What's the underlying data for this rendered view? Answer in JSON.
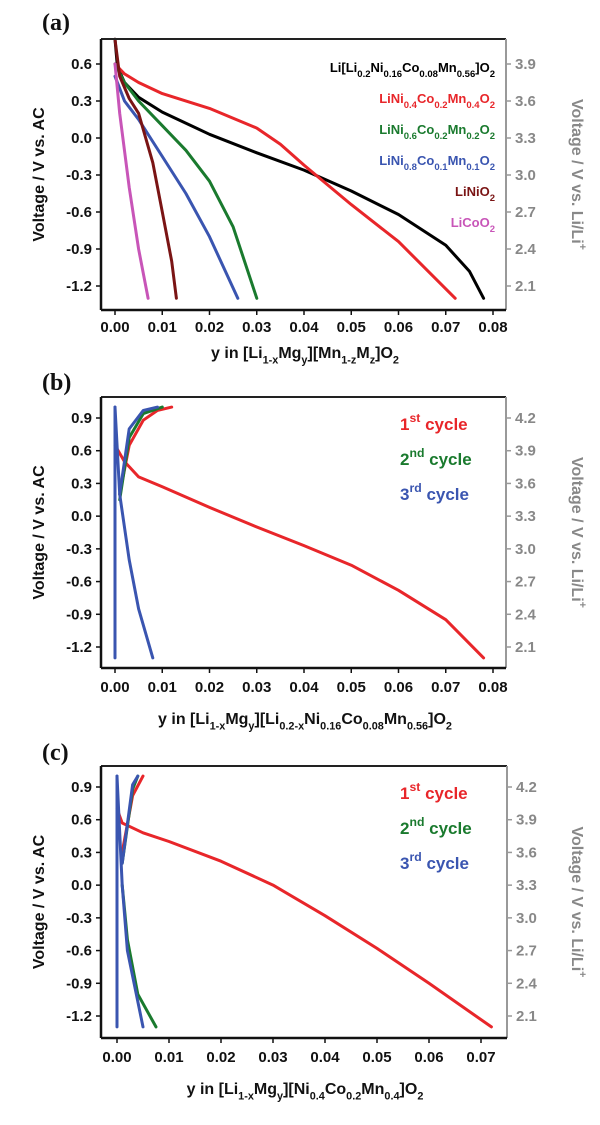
{
  "chart_data": [
    {
      "type": "line",
      "panel_label": "(a)",
      "xlabel": "y in [Li_{1-x}Mg_{y}][Mn_{1-z}M_{z}]O_{2}",
      "ylabel": "Voltage / V vs. AC",
      "ylabel_right": "Voltage / V vs. Li/Li^{+}",
      "xlim": [
        0,
        0.08
      ],
      "ylim": [
        -1.3,
        0.8
      ],
      "xticks": [
        "0.00",
        "0.01",
        "0.02",
        "0.03",
        "0.04",
        "0.05",
        "0.06",
        "0.07",
        "0.08"
      ],
      "yticks": [
        "0.6",
        "0.3",
        "0.0",
        "-0.3",
        "-0.6",
        "-0.9",
        "-1.2"
      ],
      "yticks_right": [
        "3.9",
        "3.6",
        "3.3",
        "3.0",
        "2.7",
        "2.4",
        "2.1"
      ],
      "legend_position": "top-right",
      "series": [
        {
          "name": "Li[Li_{0.2}Ni_{0.16}Co_{0.08}Mn_{0.56}]O_{2}",
          "color": "#000000",
          "points": [
            [
              0,
              0.8
            ],
            [
              0.0005,
              0.58
            ],
            [
              0.002,
              0.45
            ],
            [
              0.005,
              0.33
            ],
            [
              0.01,
              0.21
            ],
            [
              0.02,
              0.03
            ],
            [
              0.03,
              -0.12
            ],
            [
              0.04,
              -0.26
            ],
            [
              0.05,
              -0.43
            ],
            [
              0.06,
              -0.62
            ],
            [
              0.07,
              -0.87
            ],
            [
              0.075,
              -1.08
            ],
            [
              0.078,
              -1.3
            ]
          ]
        },
        {
          "name": "LiNi_{0.4}Co_{0.2}Mn_{0.4}O_{2}",
          "color": "#e8262a",
          "points": [
            [
              0,
              0.6
            ],
            [
              0.002,
              0.52
            ],
            [
              0.005,
              0.45
            ],
            [
              0.01,
              0.36
            ],
            [
              0.02,
              0.24
            ],
            [
              0.03,
              0.08
            ],
            [
              0.035,
              -0.05
            ],
            [
              0.04,
              -0.22
            ],
            [
              0.045,
              -0.38
            ],
            [
              0.05,
              -0.54
            ],
            [
              0.06,
              -0.84
            ],
            [
              0.072,
              -1.3
            ]
          ]
        },
        {
          "name": "LiNi_{0.6}Co_{0.2}Mn_{0.2}O_{2}",
          "color": "#1a7a2e",
          "points": [
            [
              0,
              0.6
            ],
            [
              0.002,
              0.45
            ],
            [
              0.005,
              0.3
            ],
            [
              0.01,
              0.1
            ],
            [
              0.015,
              -0.1
            ],
            [
              0.02,
              -0.35
            ],
            [
              0.025,
              -0.72
            ],
            [
              0.03,
              -1.3
            ]
          ]
        },
        {
          "name": "LiNi_{0.8}Co_{0.1}Mn_{0.1}O_{2}",
          "color": "#3a55b0",
          "points": [
            [
              0,
              0.5
            ],
            [
              0.002,
              0.3
            ],
            [
              0.005,
              0.15
            ],
            [
              0.01,
              -0.15
            ],
            [
              0.015,
              -0.45
            ],
            [
              0.02,
              -0.8
            ],
            [
              0.026,
              -1.3
            ]
          ]
        },
        {
          "name": "LiNiO_{2}",
          "color": "#7a1414",
          "points": [
            [
              0,
              0.8
            ],
            [
              0.001,
              0.5
            ],
            [
              0.003,
              0.32
            ],
            [
              0.005,
              0.2
            ],
            [
              0.008,
              -0.2
            ],
            [
              0.01,
              -0.6
            ],
            [
              0.012,
              -1.0
            ],
            [
              0.013,
              -1.3
            ]
          ]
        },
        {
          "name": "LiCoO_{2}",
          "color": "#c855b8",
          "points": [
            [
              0,
              0.6
            ],
            [
              0.001,
              0.2
            ],
            [
              0.003,
              -0.4
            ],
            [
              0.005,
              -0.9
            ],
            [
              0.007,
              -1.3
            ]
          ]
        }
      ]
    },
    {
      "type": "line",
      "panel_label": "(b)",
      "xlabel": "y in [Li_{1-x}Mg_{y}][Li_{0.2-x}Ni_{0.16}Co_{0.08}Mn_{0.56}]O_{2}",
      "ylabel": "Voltage / V vs. AC",
      "ylabel_right": "Voltage / V vs. Li/Li^{+}",
      "xlim": [
        0,
        0.08
      ],
      "ylim": [
        -1.3,
        1.05
      ],
      "xticks": [
        "0.00",
        "0.01",
        "0.02",
        "0.03",
        "0.04",
        "0.05",
        "0.06",
        "0.07",
        "0.08"
      ],
      "yticks": [
        "0.9",
        "0.6",
        "0.3",
        "0.0",
        "-0.3",
        "-0.6",
        "-0.9",
        "-1.2"
      ],
      "yticks_right": [
        "4.2",
        "3.9",
        "3.6",
        "3.3",
        "3.0",
        "2.7",
        "2.4",
        "2.1"
      ],
      "legend_position": "top-right",
      "legend": [
        {
          "num": "1",
          "sup": "st",
          "word": "cycle",
          "color": "#e8262a"
        },
        {
          "num": "2",
          "sup": "nd",
          "word": "cycle",
          "color": "#1a7a2e"
        },
        {
          "num": "3",
          "sup": "rd",
          "word": "cycle",
          "color": "#3a55b0"
        }
      ],
      "series": [
        {
          "name": "1st cycle discharge",
          "color": "#e8262a",
          "points": [
            [
              0,
              0.65
            ],
            [
              0.002,
              0.5
            ],
            [
              0.005,
              0.36
            ],
            [
              0.01,
              0.27
            ],
            [
              0.02,
              0.08
            ],
            [
              0.03,
              -0.1
            ],
            [
              0.04,
              -0.27
            ],
            [
              0.05,
              -0.45
            ],
            [
              0.06,
              -0.68
            ],
            [
              0.07,
              -0.95
            ],
            [
              0.078,
              -1.3
            ]
          ]
        },
        {
          "name": "1st cycle charge",
          "color": "#e8262a",
          "points": [
            [
              0.001,
              0.2
            ],
            [
              0.003,
              0.65
            ],
            [
              0.006,
              0.88
            ],
            [
              0.009,
              0.97
            ],
            [
              0.012,
              1.0
            ]
          ]
        },
        {
          "name": "2nd cycle",
          "color": "#1a7a2e",
          "points": [
            [
              0.001,
              0.15
            ],
            [
              0.003,
              0.72
            ],
            [
              0.006,
              0.94
            ],
            [
              0.01,
              1.0
            ]
          ]
        },
        {
          "name": "3rd cycle discharge",
          "color": "#3a55b0",
          "points": [
            [
              0,
              1.0
            ],
            [
              0.001,
              0.2
            ],
            [
              0.003,
              -0.4
            ],
            [
              0.005,
              -0.85
            ],
            [
              0.008,
              -1.3
            ]
          ]
        },
        {
          "name": "3rd cycle charge",
          "color": "#3a55b0",
          "points": [
            [
              0.001,
              0.2
            ],
            [
              0.003,
              0.8
            ],
            [
              0.006,
              0.97
            ],
            [
              0.009,
              1.0
            ]
          ]
        },
        {
          "name": "3rd cycle vertical",
          "color": "#3a55b0",
          "points": [
            [
              0,
              -1.3
            ],
            [
              0,
              1.0
            ]
          ]
        }
      ]
    },
    {
      "type": "line",
      "panel_label": "(c)",
      "xlabel": "y in [Li_{1-x}Mg_{y}][Ni_{0.4}Co_{0.2}Mn_{0.4}]O_{2}",
      "ylabel": "Voltage / V vs. AC",
      "ylabel_right": "Voltage / V vs. Li/Li^{+}",
      "xlim": [
        0,
        0.072
      ],
      "ylim": [
        -1.3,
        1.05
      ],
      "xticks": [
        "0.00",
        "0.01",
        "0.02",
        "0.03",
        "0.04",
        "0.05",
        "0.06",
        "0.07"
      ],
      "yticks": [
        "0.9",
        "0.6",
        "0.3",
        "0.0",
        "-0.3",
        "-0.6",
        "-0.9",
        "-1.2"
      ],
      "yticks_right": [
        "4.2",
        "3.9",
        "3.6",
        "3.3",
        "3.0",
        "2.7",
        "2.4",
        "2.1"
      ],
      "legend_position": "top-right",
      "legend": [
        {
          "num": "1",
          "sup": "st",
          "word": "cycle",
          "color": "#e8262a"
        },
        {
          "num": "2",
          "sup": "nd",
          "word": "cycle",
          "color": "#1a7a2e"
        },
        {
          "num": "3",
          "sup": "rd",
          "word": "cycle",
          "color": "#3a55b0"
        }
      ],
      "series": [
        {
          "name": "1st cycle discharge",
          "color": "#e8262a",
          "points": [
            [
              0,
              0.7
            ],
            [
              0.001,
              0.57
            ],
            [
              0.005,
              0.48
            ],
            [
              0.01,
              0.4
            ],
            [
              0.02,
              0.22
            ],
            [
              0.03,
              0.0
            ],
            [
              0.04,
              -0.28
            ],
            [
              0.05,
              -0.58
            ],
            [
              0.06,
              -0.9
            ],
            [
              0.072,
              -1.3
            ]
          ]
        },
        {
          "name": "1st cycle charge",
          "color": "#e8262a",
          "points": [
            [
              0.001,
              0.3
            ],
            [
              0.003,
              0.82
            ],
            [
              0.005,
              1.0
            ]
          ]
        },
        {
          "name": "2nd cycle charge",
          "color": "#1a7a2e",
          "points": [
            [
              0.001,
              0.2
            ],
            [
              0.003,
              0.88
            ],
            [
              0.004,
              1.0
            ]
          ]
        },
        {
          "name": "2nd cycle discharge",
          "color": "#1a7a2e",
          "points": [
            [
              0.001,
              0.0
            ],
            [
              0.002,
              -0.5
            ],
            [
              0.004,
              -1.0
            ],
            [
              0.0075,
              -1.3
            ]
          ]
        },
        {
          "name": "3rd cycle charge",
          "color": "#3a55b0",
          "points": [
            [
              0.001,
              0.2
            ],
            [
              0.003,
              0.92
            ],
            [
              0.004,
              1.0
            ]
          ]
        },
        {
          "name": "3rd cycle discharge",
          "color": "#3a55b0",
          "points": [
            [
              0,
              1.0
            ],
            [
              0.001,
              0.0
            ],
            [
              0.002,
              -0.6
            ],
            [
              0.005,
              -1.3
            ]
          ]
        },
        {
          "name": "3rd cycle vertical",
          "color": "#3a55b0",
          "points": [
            [
              0,
              -1.3
            ],
            [
              0,
              1.0
            ]
          ]
        }
      ]
    }
  ]
}
